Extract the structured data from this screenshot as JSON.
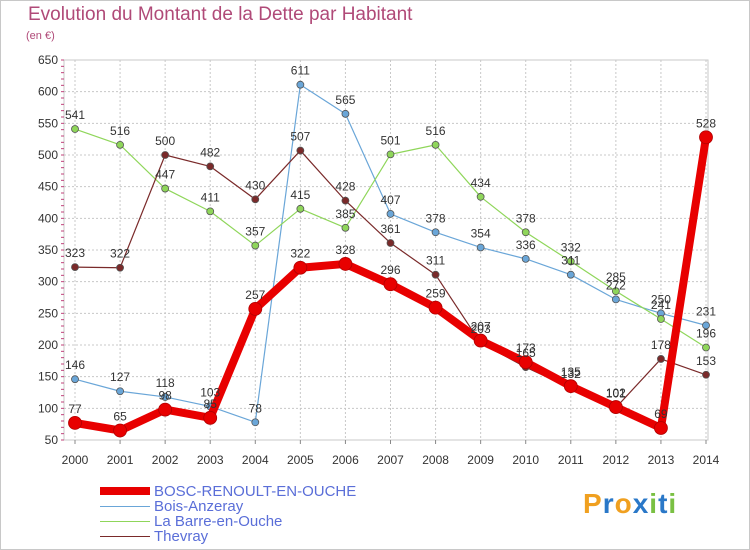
{
  "header": {
    "title": "Evolution du Montant de la Dette par Habitant",
    "subtitle": "(en €)"
  },
  "brand": {
    "letters": [
      "P",
      "r",
      "o",
      "x",
      "i",
      "t",
      "i"
    ],
    "colors": [
      "#f0a020",
      "#2a78c8",
      "#f0a020",
      "#2a78c8",
      "#7ac043",
      "#2a78c8",
      "#7ac043"
    ]
  },
  "chart_data": {
    "type": "line",
    "title": "Evolution du Montant de la Dette par Habitant",
    "subtitle": "(en €)",
    "x": [
      "2000",
      "2001",
      "2002",
      "2003",
      "2004",
      "2005",
      "2006",
      "2007",
      "2008",
      "2009",
      "2010",
      "2011",
      "2012",
      "2013",
      "2014"
    ],
    "ylim": [
      50,
      650
    ],
    "yticks": [
      50,
      100,
      150,
      200,
      250,
      300,
      350,
      400,
      450,
      500,
      550,
      600,
      650
    ],
    "grid": true,
    "legend_position": "bottom-left",
    "series": [
      {
        "name": "BOSC-RENOULT-EN-OUCHE",
        "color": "#e80000",
        "width": 8,
        "values": [
          77,
          65,
          98,
          85,
          257,
          322,
          328,
          296,
          259,
          207,
          173,
          135,
          102,
          69,
          528
        ],
        "labels": [
          "77",
          "65",
          "98",
          "85",
          "257",
          "322",
          "328",
          "296",
          "259",
          "207",
          "173",
          "135",
          "102",
          "69",
          "528"
        ]
      },
      {
        "name": "Bois-Anzeray",
        "color": "#6aa6d8",
        "width": 1.2,
        "values": [
          146,
          127,
          118,
          103,
          78,
          611,
          565,
          407,
          378,
          354,
          336,
          311,
          272,
          250,
          231
        ],
        "labels": [
          "146",
          "127",
          "118",
          "103",
          "78",
          "611",
          "565",
          "407",
          "378",
          "354",
          "336",
          "311",
          "272",
          "250",
          "231"
        ]
      },
      {
        "name": "La Barre-en-Ouche",
        "color": "#8fd65a",
        "width": 1.2,
        "values": [
          541,
          516,
          447,
          411,
          357,
          415,
          385,
          501,
          516,
          434,
          378,
          332,
          285,
          241,
          196
        ],
        "labels": [
          "541",
          "516",
          "447",
          "411",
          "357",
          "415",
          "385",
          "501",
          "516",
          "434",
          "378",
          "332",
          "285",
          "241",
          "196"
        ]
      },
      {
        "name": "Thevray",
        "color": "#7a2a2a",
        "width": 1.2,
        "values": [
          323,
          322,
          500,
          482,
          430,
          507,
          428,
          361,
          311,
          203,
          165,
          132,
          101,
          178,
          153
        ],
        "labels": [
          "323",
          "322",
          "500",
          "482",
          "430",
          "507",
          "428",
          "361",
          "311",
          "203",
          "165",
          "132",
          "101",
          "178",
          "153"
        ]
      }
    ]
  }
}
